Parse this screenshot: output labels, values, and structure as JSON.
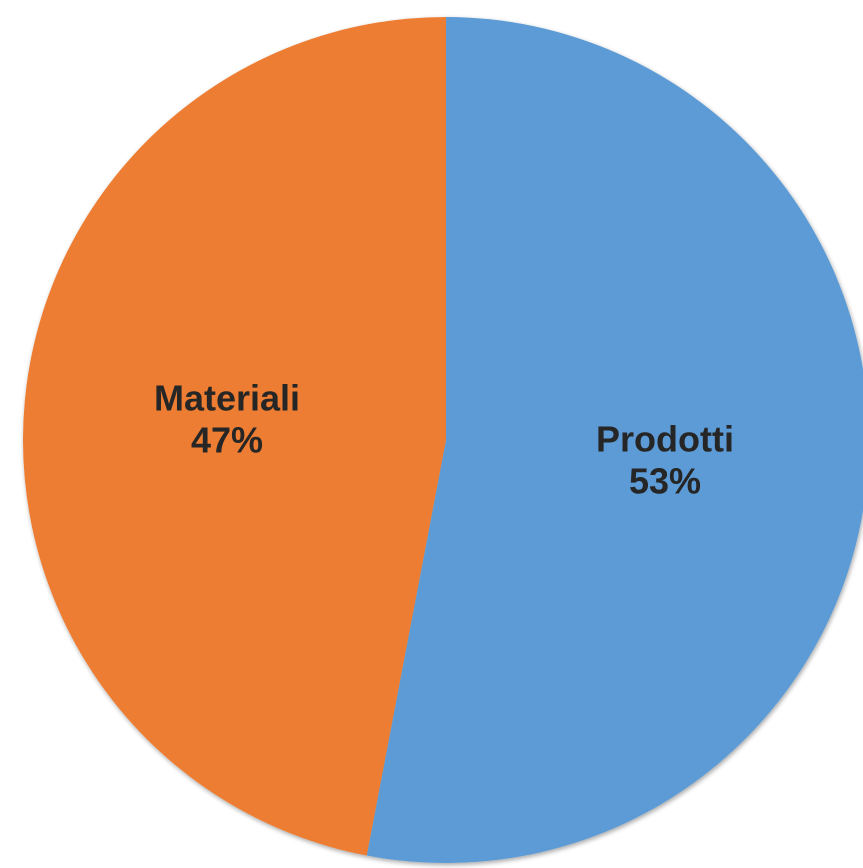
{
  "chart_data": {
    "type": "pie",
    "slices": [
      {
        "name": "Prodotti",
        "value": 53,
        "label_value": "53%",
        "color": "#5b9bd5"
      },
      {
        "name": "Materiali",
        "value": 47,
        "label_value": "47%",
        "color": "#ed7d31"
      }
    ],
    "start": "12 o'clock",
    "direction": "clockwise",
    "legend": "none",
    "slice_labels": "inside"
  }
}
